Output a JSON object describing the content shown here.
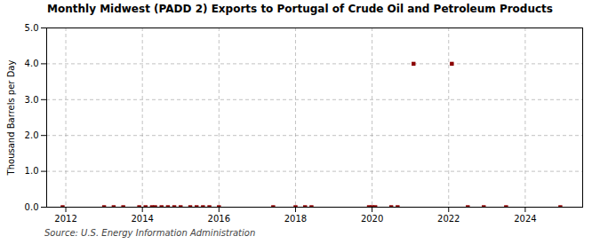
{
  "chart_data": {
    "type": "scatter",
    "title": "Monthly Midwest (PADD 2) Exports to Portugal of Crude Oil and Petroleum Products",
    "ylabel": "Thousand Barrels per Day",
    "source": "Source: U.S. Energy Information Administration",
    "x": [
      2011.917,
      2013.0,
      2013.25,
      2013.5,
      2013.917,
      2014.083,
      2014.25,
      2014.333,
      2014.5,
      2014.667,
      2014.833,
      2015.0,
      2015.25,
      2015.417,
      2015.583,
      2015.75,
      2016.0,
      2017.417,
      2018.0,
      2018.25,
      2018.417,
      2019.917,
      2020.0,
      2020.083,
      2020.5,
      2020.667,
      2021.083,
      2022.083,
      2022.5,
      2022.917,
      2023.5,
      2024.917
    ],
    "values": [
      0.0,
      0.0,
      0.0,
      0.0,
      0.0,
      0.0,
      0.0,
      0.0,
      0.0,
      0.0,
      0.0,
      0.0,
      0.0,
      0.0,
      0.0,
      0.0,
      0.0,
      0.0,
      0.0,
      0.0,
      0.0,
      0.0,
      0.0,
      0.0,
      0.0,
      0.0,
      4.0,
      4.0,
      0.0,
      0.0,
      0.0,
      0.0
    ],
    "color": "#8B0000",
    "marker": "square",
    "xlim": [
      2011.5,
      2025.5
    ],
    "xticks": [
      2012,
      2014,
      2016,
      2018,
      2020,
      2022,
      2024
    ],
    "ylim": [
      0.0,
      5.0
    ],
    "yticks": [
      {
        "value": 0.0,
        "label": "0.0"
      },
      {
        "value": 1.0,
        "label": "1.0"
      },
      {
        "value": 2.0,
        "label": "2.0"
      },
      {
        "value": 3.0,
        "label": "3.0"
      },
      {
        "value": 4.0,
        "label": "4.0"
      },
      {
        "value": 5.0,
        "label": "5.0"
      }
    ],
    "grid": true
  }
}
